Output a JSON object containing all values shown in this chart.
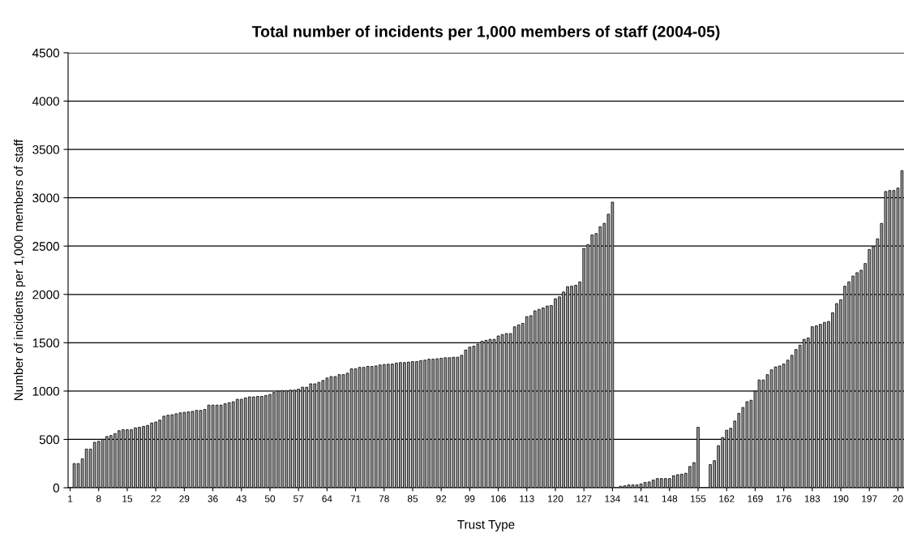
{
  "chart_data": {
    "type": "bar",
    "title": "Total number of incidents per 1,000 members of staff (2004-05)",
    "xlabel": "Trust Type",
    "ylabel": "Number of incidents per 1,000 members of staff",
    "categories": [
      "1",
      null,
      null,
      null,
      null,
      null,
      null,
      "8",
      null,
      null,
      null,
      null,
      null,
      null,
      "15",
      null,
      null,
      null,
      null,
      null,
      null,
      "22",
      null,
      null,
      null,
      null,
      null,
      null,
      "29",
      null,
      null,
      null,
      null,
      null,
      null,
      "36",
      null,
      null,
      null,
      null,
      null,
      null,
      "43",
      null,
      null,
      null,
      null,
      null,
      null,
      "50",
      null,
      null,
      null,
      null,
      null,
      null,
      "57",
      null,
      null,
      null,
      null,
      null,
      null,
      "64",
      null,
      null,
      null,
      null,
      null,
      null,
      "71",
      null,
      null,
      null,
      null,
      null,
      null,
      "78",
      null,
      null,
      null,
      null,
      null,
      null,
      "85",
      null,
      null,
      null,
      null,
      null,
      null,
      "92",
      null,
      null,
      null,
      null,
      null,
      null,
      "99",
      null,
      null,
      null,
      null,
      null,
      null,
      "106",
      null,
      null,
      null,
      null,
      null,
      null,
      "113",
      null,
      null,
      null,
      null,
      null,
      null,
      "120",
      null,
      null,
      null,
      null,
      null,
      null,
      "127",
      null,
      null,
      null,
      null,
      null,
      null,
      "134",
      null,
      null,
      null,
      null,
      null,
      null,
      "141",
      null,
      null,
      null,
      null,
      null,
      null,
      "148",
      null,
      null,
      null,
      null,
      null,
      null,
      "155",
      null,
      null,
      null,
      null,
      null,
      null,
      "162",
      null,
      null,
      null,
      null,
      null,
      null,
      "169",
      null,
      null,
      null,
      null,
      null,
      null,
      "176",
      null,
      null,
      null,
      null,
      null,
      null,
      "183",
      null,
      null,
      null,
      null,
      null,
      null,
      "190",
      null,
      null,
      null,
      null,
      null,
      null,
      "197",
      null,
      null,
      null,
      null,
      null,
      null,
      "20",
      null
    ],
    "values": [
      null,
      250,
      250,
      300,
      400,
      400,
      470,
      480,
      500,
      530,
      540,
      560,
      590,
      600,
      600,
      600,
      620,
      625,
      635,
      645,
      670,
      680,
      700,
      740,
      750,
      755,
      765,
      775,
      780,
      785,
      790,
      800,
      800,
      810,
      855,
      855,
      855,
      855,
      870,
      880,
      890,
      915,
      915,
      930,
      940,
      940,
      945,
      945,
      955,
      965,
      985,
      1000,
      1005,
      1005,
      1010,
      1010,
      1020,
      1040,
      1040,
      1075,
      1075,
      1090,
      1110,
      1135,
      1150,
      1150,
      1170,
      1170,
      1185,
      1230,
      1230,
      1245,
      1245,
      1255,
      1255,
      1260,
      1270,
      1275,
      1278,
      1280,
      1290,
      1295,
      1295,
      1300,
      1305,
      1305,
      1315,
      1320,
      1330,
      1330,
      1335,
      1340,
      1345,
      1345,
      1350,
      1350,
      1370,
      1425,
      1455,
      1465,
      1485,
      1515,
      1525,
      1535,
      1535,
      1570,
      1585,
      1595,
      1595,
      1665,
      1685,
      1700,
      1770,
      1780,
      1830,
      1845,
      1860,
      1880,
      1885,
      1955,
      1975,
      2025,
      2080,
      2085,
      2095,
      2130,
      2475,
      2515,
      2615,
      2630,
      2700,
      2735,
      2830,
      2955,
      null,
      15,
      20,
      30,
      30,
      30,
      40,
      55,
      60,
      80,
      95,
      95,
      95,
      95,
      125,
      135,
      140,
      150,
      220,
      260,
      625,
      null,
      null,
      240,
      280,
      435,
      520,
      595,
      615,
      690,
      770,
      830,
      890,
      905,
      1000,
      1115,
      1115,
      1170,
      1220,
      1250,
      1260,
      1280,
      1320,
      1370,
      1430,
      1475,
      1535,
      1550,
      1665,
      1675,
      1690,
      1710,
      1720,
      1810,
      1905,
      1945,
      2085,
      2130,
      2190,
      2225,
      2250,
      2320,
      2465,
      2495,
      2575,
      2735,
      3065,
      3075,
      3075,
      3100,
      3280
    ],
    "color": "#9a9a9a",
    "ylim": [
      0,
      4500
    ],
    "yticks": [
      0,
      500,
      1000,
      1500,
      2000,
      2500,
      3000,
      3500,
      4000,
      4500
    ],
    "grid": "y",
    "legend": false
  }
}
